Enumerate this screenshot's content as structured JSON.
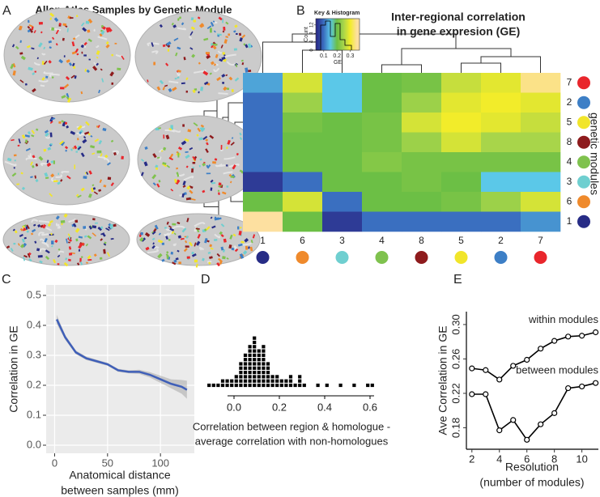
{
  "figure": {
    "panel_labels": [
      "A",
      "B",
      "C",
      "D",
      "E"
    ],
    "brain_title": "Allen Atlas Samples by Genetic Module"
  },
  "chart_data": [
    {
      "type": "heatmap",
      "title": [
        "Inter-regional correlation",
        "in gene expresion (GE)"
      ],
      "rows": [
        "7",
        "2",
        "5",
        "8",
        "4",
        "3",
        "6",
        "1"
      ],
      "columns": [
        "1",
        "6",
        "3",
        "4",
        "8",
        "5",
        "2",
        "7"
      ],
      "values": [
        [
          0.13,
          0.28,
          0.15,
          0.2,
          0.21,
          0.27,
          0.29,
          0.34
        ],
        [
          0.1,
          0.24,
          0.15,
          0.2,
          0.24,
          0.29,
          0.3,
          0.29
        ],
        [
          0.1,
          0.21,
          0.2,
          0.21,
          0.28,
          0.3,
          0.29,
          0.27
        ],
        [
          0.1,
          0.2,
          0.2,
          0.21,
          0.24,
          0.28,
          0.25,
          0.25
        ],
        [
          0.1,
          0.2,
          0.2,
          0.22,
          0.21,
          0.21,
          0.21,
          0.21
        ],
        [
          0.06,
          0.1,
          0.2,
          0.2,
          0.21,
          0.2,
          0.15,
          0.15
        ],
        [
          0.2,
          0.28,
          0.1,
          0.2,
          0.2,
          0.21,
          0.24,
          0.28
        ],
        [
          0.35,
          0.2,
          0.06,
          0.1,
          0.1,
          0.1,
          0.1,
          0.12
        ]
      ],
      "y_label": "genetic modules",
      "module_colors": {
        "1": "#272c86",
        "2": "#3d7fc6",
        "3": "#6fcfd0",
        "4": "#7fc24e",
        "5": "#f1e52a",
        "6": "#ef8a2c",
        "7": "#e9262c",
        "8": "#8e1b1d"
      },
      "colorscale": [
        [
          0.05,
          "#2b2e8c"
        ],
        [
          0.1,
          "#3a6fc0"
        ],
        [
          0.15,
          "#5bc8e8"
        ],
        [
          0.2,
          "#6cbf45"
        ],
        [
          0.25,
          "#a8d54a"
        ],
        [
          0.3,
          "#f2ec2a"
        ],
        [
          0.35,
          "#fde0a0"
        ]
      ],
      "key": {
        "title": "Key & Histogram",
        "xlabel": "GE",
        "ylabel": "Count",
        "xlim": [
          0.04,
          0.37
        ],
        "xticks": [
          0.1,
          0.2,
          0.3
        ],
        "ylim": [
          0,
          15
        ],
        "yticks": [
          0,
          4,
          8,
          12
        ]
      }
    },
    {
      "type": "line",
      "ylabel": "Correlation in GE",
      "xlabel": [
        "Anatomical distance",
        "between samples (mm)"
      ],
      "x": [
        2,
        10,
        20,
        30,
        40,
        50,
        60,
        70,
        80,
        90,
        100,
        110,
        120,
        125
      ],
      "series": [
        {
          "color": "#3f5fb8",
          "values": [
            0.42,
            0.36,
            0.31,
            0.29,
            0.28,
            0.27,
            0.25,
            0.245,
            0.245,
            0.235,
            0.22,
            0.205,
            0.195,
            0.185
          ],
          "ci_lower": [
            0.405,
            0.352,
            0.304,
            0.284,
            0.275,
            0.265,
            0.245,
            0.24,
            0.238,
            0.226,
            0.208,
            0.19,
            0.172,
            0.155
          ],
          "ci_upper": [
            0.435,
            0.368,
            0.316,
            0.296,
            0.285,
            0.275,
            0.255,
            0.25,
            0.252,
            0.244,
            0.232,
            0.22,
            0.218,
            0.215
          ]
        }
      ],
      "xlim": [
        -8,
        132
      ],
      "ylim": [
        -0.027,
        0.535
      ],
      "xticks": [
        0,
        50,
        100
      ],
      "yticks": [
        {
          "value": 0,
          "label": "0.0"
        },
        0.1,
        0.2,
        0.3,
        0.4,
        0.5
      ],
      "grid": true,
      "background": "#ebebeb"
    },
    {
      "type": "dotplot",
      "xlabel": [
        "Correlation between region & homologue -",
        "average correlation with non-homologues"
      ],
      "x": [
        -0.11,
        -0.09,
        -0.07,
        -0.05,
        -0.03,
        -0.01,
        0.01,
        0.03,
        0.05,
        0.07,
        0.09,
        0.11,
        0.13,
        0.15,
        0.17,
        0.19,
        0.21,
        0.23,
        0.25,
        0.27,
        0.29,
        0.31,
        0.33,
        0.35,
        0.37,
        0.39,
        0.41,
        0.43,
        0.45,
        0.47,
        0.49,
        0.51,
        0.53,
        0.55,
        0.57,
        0.59,
        0.61
      ],
      "values": [
        1,
        1,
        1,
        2,
        2,
        2,
        3,
        6,
        8,
        10,
        12,
        9,
        10,
        6,
        3,
        3,
        2,
        2,
        3,
        1,
        3,
        1,
        0,
        0,
        1,
        0,
        1,
        0,
        0,
        1,
        0,
        0,
        1,
        0,
        0,
        1,
        1
      ],
      "xlim": [
        -0.13,
        0.63
      ],
      "xticks": [
        {
          "value": 0,
          "label": "0.0"
        },
        0.2,
        0.4,
        0.6
      ],
      "color": "#000000"
    },
    {
      "type": "line",
      "ylabel": "Ave Correlation in GE",
      "xlabel": [
        "Resolution",
        "(number of modules)"
      ],
      "x": [
        2,
        3,
        4,
        5,
        6,
        7,
        8,
        9,
        10,
        11
      ],
      "series": [
        {
          "name": "within modules",
          "color": "#000000",
          "values": [
            0.249,
            0.247,
            0.236,
            0.252,
            0.259,
            0.272,
            0.281,
            0.286,
            0.287,
            0.291
          ]
        },
        {
          "name": "between modules",
          "color": "#000000",
          "values": [
            0.219,
            0.219,
            0.177,
            0.189,
            0.166,
            0.184,
            0.197,
            0.226,
            0.228,
            0.232
          ]
        }
      ],
      "xlim": [
        1.6,
        11.2
      ],
      "ylim": [
        0.155,
        0.315
      ],
      "xticks": [
        2,
        4,
        6,
        8,
        10
      ],
      "yticks": [
        0.18,
        0.22,
        0.26,
        {
          "value": 0.3,
          "label": "0.30"
        }
      ],
      "grid": false,
      "marker": "open-circle"
    }
  ]
}
